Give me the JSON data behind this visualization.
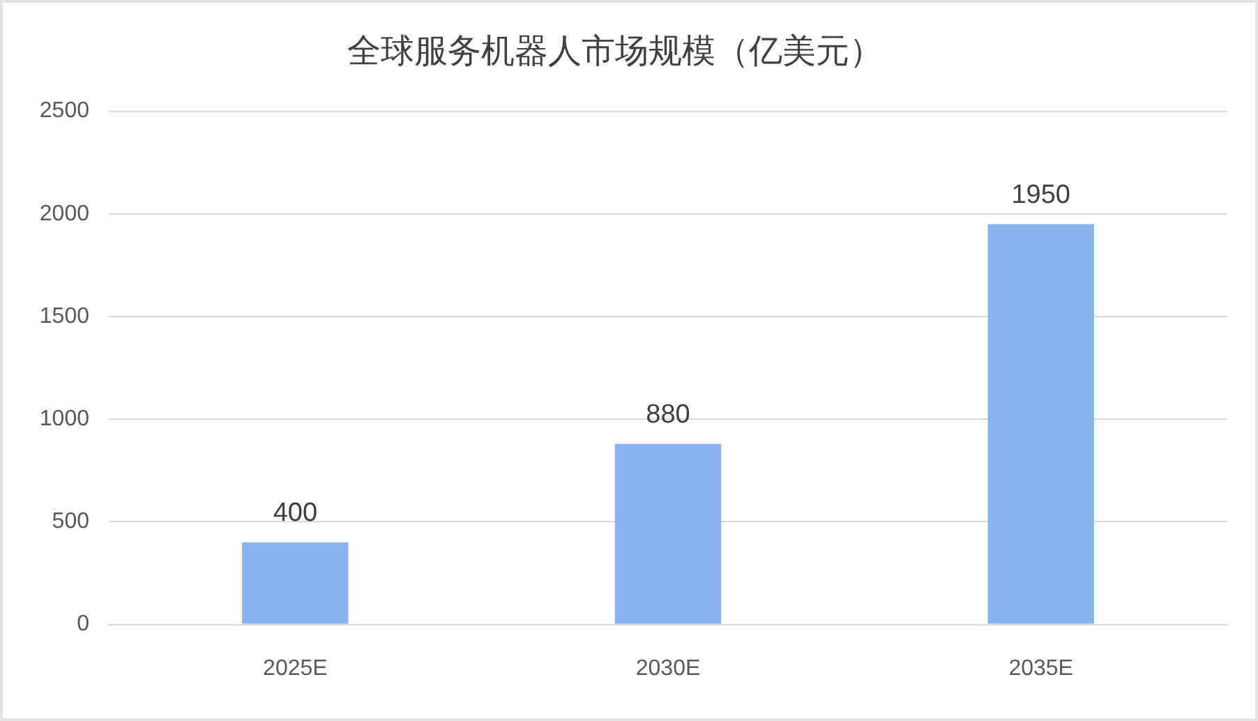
{
  "chart_data": {
    "type": "bar",
    "title": "全球服务机器人市场规模（亿美元）",
    "categories": [
      "2025E",
      "2030E",
      "2035E"
    ],
    "values": [
      400,
      880,
      1950
    ],
    "color": "#8ab2ee",
    "ylim": [
      0,
      2500
    ],
    "yticks": [
      0,
      500,
      1000,
      1500,
      2000,
      2500
    ],
    "grid": "y",
    "data_labels": true
  }
}
